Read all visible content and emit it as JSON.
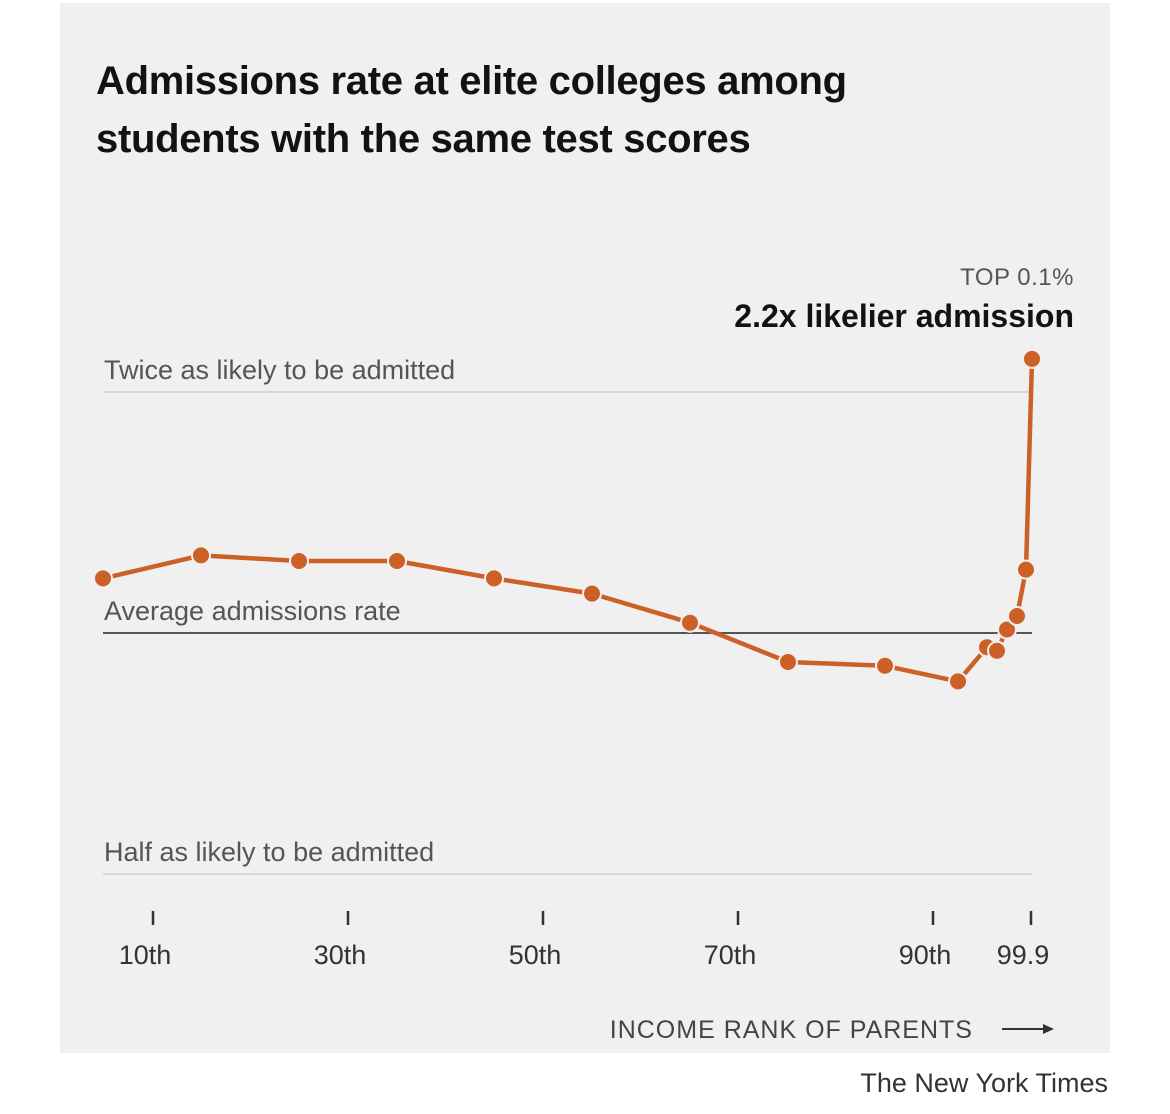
{
  "credit": "The New York Times",
  "colors": {
    "line": "#cc6026",
    "average_line": "#555555",
    "reference_line": "#d6d6d6",
    "panel": "#f0f0f0"
  },
  "chart_data": {
    "type": "line",
    "title": "Admissions rate at elite colleges among students with the same test scores",
    "xlabel": "INCOME RANK OF PARENTS",
    "ylabel": "",
    "y_scale": "log",
    "y_unit": "admission rate relative to average",
    "ylim": [
      0.5,
      2.2
    ],
    "x_ticks": [
      "10th",
      "30th",
      "50th",
      "70th",
      "90th",
      "99.9"
    ],
    "reference_lines": [
      {
        "label": "Twice as likely to be admitted",
        "value": 2.0
      },
      {
        "label": "Average admissions rate",
        "value": 1.0
      },
      {
        "label": "Half as likely to be admitted",
        "value": 0.5
      }
    ],
    "annotation": {
      "kicker": "TOP 0.1%",
      "text": "2.2x likelier admission"
    },
    "series": [
      {
        "points": [
          {
            "x": "0-10th",
            "y": 1.17
          },
          {
            "x": "10-20th",
            "y": 1.25
          },
          {
            "x": "20-30th",
            "y": 1.23
          },
          {
            "x": "30-40th",
            "y": 1.23
          },
          {
            "x": "40-50th",
            "y": 1.17
          },
          {
            "x": "50-60th",
            "y": 1.12
          },
          {
            "x": "60-70th",
            "y": 1.03
          },
          {
            "x": "70-80th",
            "y": 0.92
          },
          {
            "x": "80-90th",
            "y": 0.91
          },
          {
            "x": "90-95th",
            "y": 0.87
          },
          {
            "x": "95-96th",
            "y": 0.96
          },
          {
            "x": "96-97th",
            "y": 0.95
          },
          {
            "x": "97-98th",
            "y": 1.01
          },
          {
            "x": "98-99th",
            "y": 1.05
          },
          {
            "x": "99-99.9th",
            "y": 1.2
          },
          {
            "x": "Top 0.1%",
            "y": 2.2
          }
        ]
      }
    ]
  }
}
